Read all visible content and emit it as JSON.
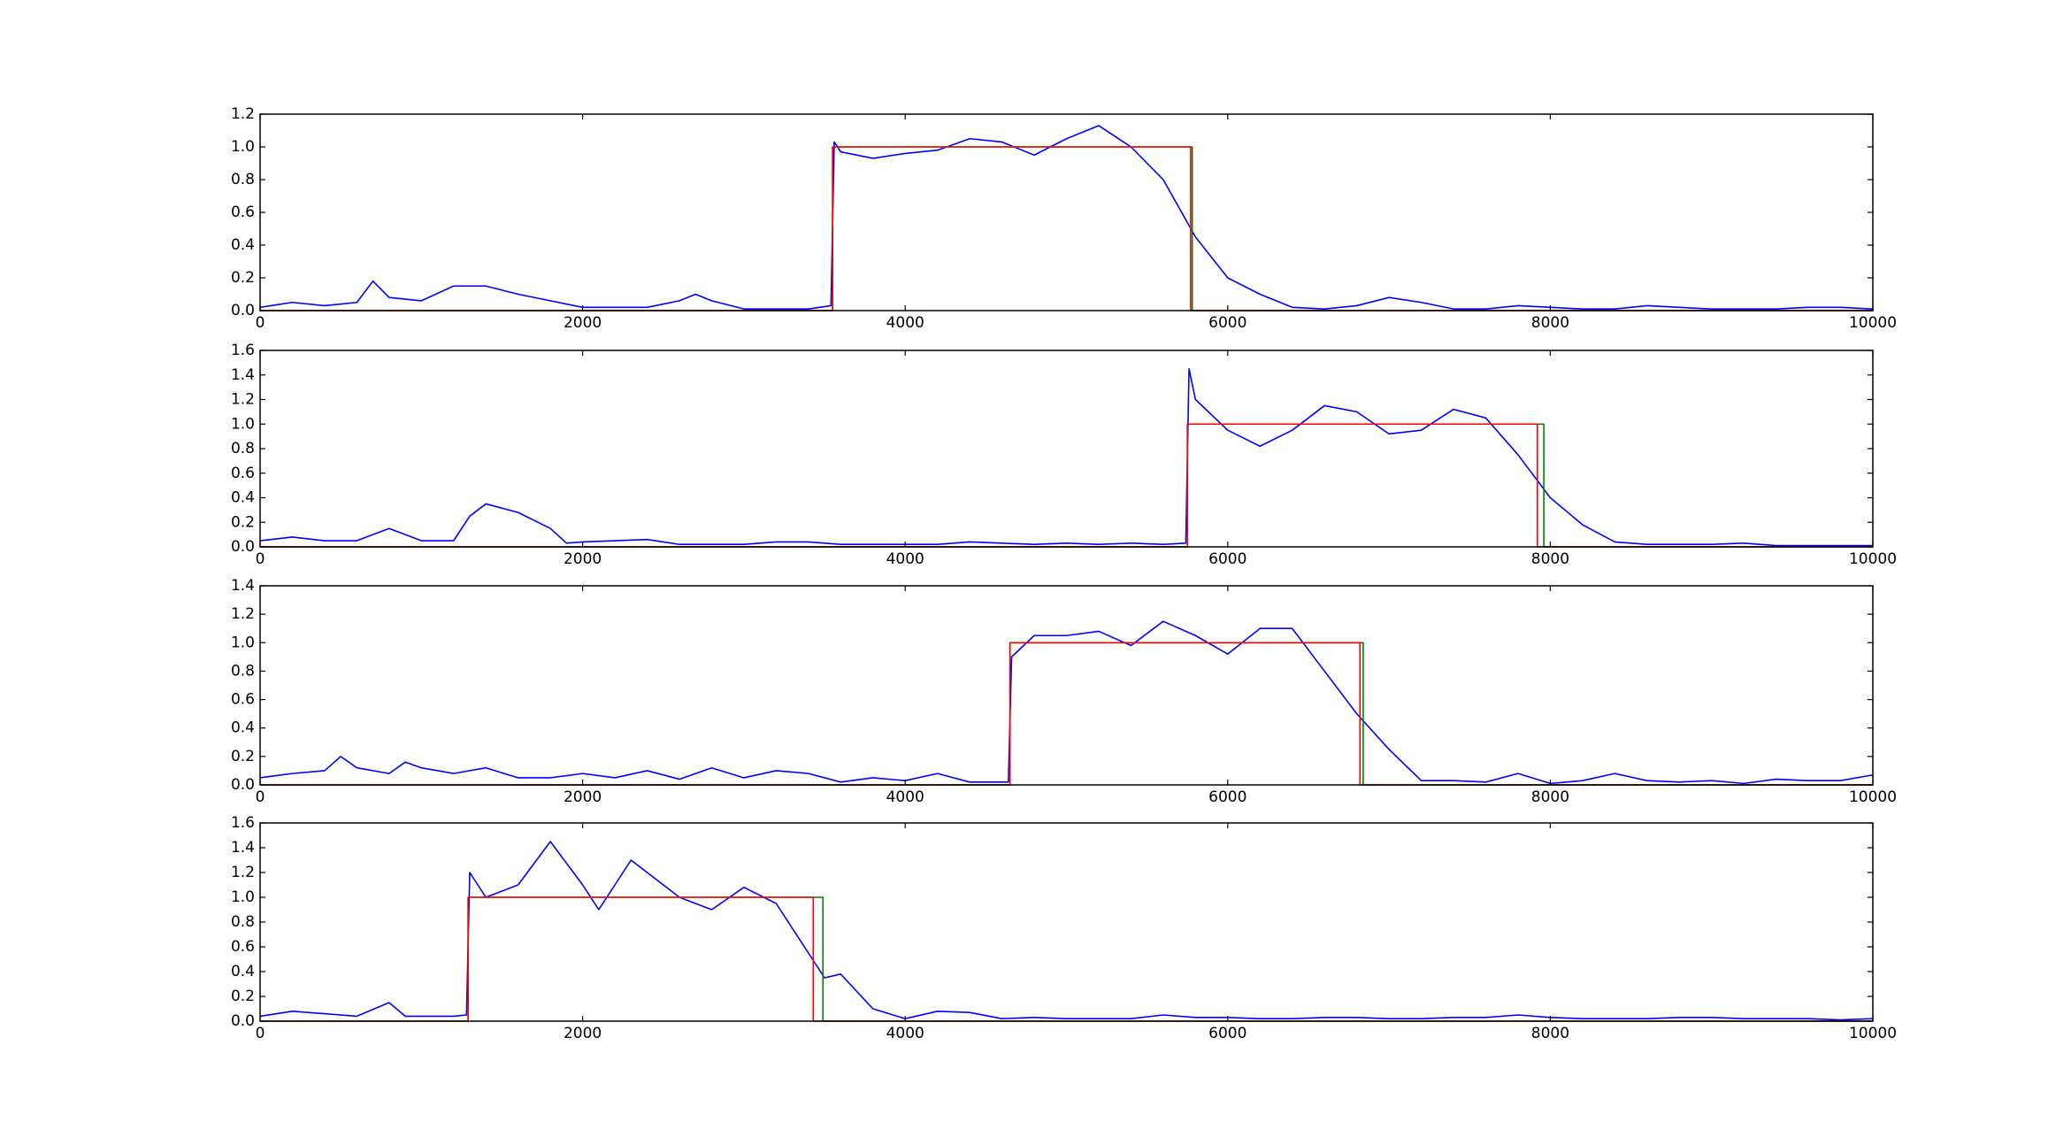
{
  "chart_data": [
    {
      "type": "line",
      "xlim": [
        0,
        10000
      ],
      "xticks": [
        0,
        2000,
        4000,
        6000,
        8000,
        10000
      ],
      "ylim": [
        0,
        1.2
      ],
      "yticks": [
        {
          "value": 0,
          "label": "0.0"
        },
        0.2,
        0.4,
        0.6,
        0.8,
        {
          "value": 1,
          "label": "1.0"
        },
        1.2
      ],
      "series": [
        {
          "color": "#0000ff",
          "x": [
            0,
            200,
            400,
            600,
            700,
            800,
            1000,
            1200,
            1400,
            1600,
            1800,
            2000,
            2200,
            2400,
            2600,
            2700,
            2800,
            3000,
            3200,
            3400,
            3540,
            3560,
            3600,
            3800,
            4000,
            4200,
            4400,
            4600,
            4800,
            5000,
            5200,
            5400,
            5600,
            5800,
            6000,
            6200,
            6400,
            6600,
            6800,
            7000,
            7200,
            7400,
            7600,
            7800,
            8000,
            8200,
            8400,
            8600,
            8800,
            9000,
            9200,
            9400,
            9600,
            9800,
            10000
          ],
          "values": [
            0.02,
            0.05,
            0.03,
            0.05,
            0.18,
            0.08,
            0.06,
            0.15,
            0.15,
            0.1,
            0.06,
            0.02,
            0.02,
            0.02,
            0.06,
            0.1,
            0.06,
            0.01,
            0.01,
            0.01,
            0.03,
            1.03,
            0.97,
            0.93,
            0.96,
            0.98,
            1.05,
            1.03,
            0.95,
            1.05,
            1.13,
            1.0,
            0.8,
            0.45,
            0.2,
            0.1,
            0.02,
            0.01,
            0.03,
            0.08,
            0.05,
            0.01,
            0.01,
            0.03,
            0.02,
            0.01,
            0.01,
            0.03,
            0.02,
            0.01,
            0.01,
            0.01,
            0.02,
            0.02,
            0.01
          ]
        },
        {
          "color": "#008000",
          "x": [
            0,
            3550,
            3550,
            5780,
            5780,
            10000
          ],
          "values": [
            0,
            0,
            1,
            1,
            0,
            0
          ]
        },
        {
          "color": "#ff0000",
          "x": [
            0,
            3550,
            3550,
            5770,
            5770,
            10000
          ],
          "values": [
            0,
            0,
            1,
            1,
            0,
            0
          ]
        }
      ]
    },
    {
      "type": "line",
      "xlim": [
        0,
        10000
      ],
      "xticks": [
        0,
        2000,
        4000,
        6000,
        8000,
        10000
      ],
      "ylim": [
        0,
        1.6
      ],
      "yticks": [
        {
          "value": 0,
          "label": "0.0"
        },
        0.2,
        0.4,
        0.6,
        0.8,
        {
          "value": 1,
          "label": "1.0"
        },
        1.2,
        1.4,
        1.6
      ],
      "series": [
        {
          "color": "#0000ff",
          "x": [
            0,
            200,
            400,
            600,
            800,
            1000,
            1200,
            1300,
            1400,
            1600,
            1800,
            1900,
            2000,
            2200,
            2400,
            2600,
            2800,
            3000,
            3200,
            3400,
            3600,
            3800,
            4000,
            4200,
            4400,
            4600,
            4800,
            5000,
            5200,
            5400,
            5600,
            5740,
            5760,
            5800,
            6000,
            6200,
            6400,
            6600,
            6800,
            7000,
            7200,
            7400,
            7600,
            7800,
            8000,
            8200,
            8400,
            8600,
            8800,
            9000,
            9200,
            9400,
            9600,
            9800,
            10000
          ],
          "values": [
            0.05,
            0.08,
            0.05,
            0.05,
            0.15,
            0.05,
            0.05,
            0.25,
            0.35,
            0.28,
            0.15,
            0.03,
            0.04,
            0.05,
            0.06,
            0.02,
            0.02,
            0.02,
            0.04,
            0.04,
            0.02,
            0.02,
            0.02,
            0.02,
            0.04,
            0.03,
            0.02,
            0.03,
            0.02,
            0.03,
            0.02,
            0.03,
            1.45,
            1.2,
            0.95,
            0.82,
            0.95,
            1.15,
            1.1,
            0.92,
            0.95,
            1.12,
            1.05,
            0.75,
            0.4,
            0.18,
            0.04,
            0.02,
            0.02,
            0.02,
            0.03,
            0.01,
            0.01,
            0.01,
            0.01
          ]
        },
        {
          "color": "#008000",
          "x": [
            0,
            5750,
            5750,
            7960,
            7960,
            10000
          ],
          "values": [
            0,
            0,
            1,
            1,
            0,
            0
          ]
        },
        {
          "color": "#ff0000",
          "x": [
            0,
            5750,
            5750,
            7920,
            7920,
            10000
          ],
          "values": [
            0,
            0,
            1,
            1,
            0,
            0
          ]
        }
      ]
    },
    {
      "type": "line",
      "xlim": [
        0,
        10000
      ],
      "xticks": [
        0,
        2000,
        4000,
        6000,
        8000,
        10000
      ],
      "ylim": [
        0,
        1.4
      ],
      "yticks": [
        {
          "value": 0,
          "label": "0.0"
        },
        0.2,
        0.4,
        0.6,
        0.8,
        {
          "value": 1,
          "label": "1.0"
        },
        1.2,
        1.4
      ],
      "series": [
        {
          "color": "#0000ff",
          "x": [
            0,
            200,
            400,
            500,
            600,
            800,
            900,
            1000,
            1200,
            1400,
            1600,
            1800,
            2000,
            2200,
            2400,
            2600,
            2800,
            3000,
            3200,
            3400,
            3600,
            3800,
            4000,
            4200,
            4400,
            4640,
            4660,
            4800,
            5000,
            5200,
            5400,
            5600,
            5800,
            6000,
            6200,
            6400,
            6600,
            6800,
            7000,
            7200,
            7400,
            7600,
            7800,
            8000,
            8200,
            8400,
            8600,
            8800,
            9000,
            9200,
            9400,
            9600,
            9800,
            10000
          ],
          "values": [
            0.05,
            0.08,
            0.1,
            0.2,
            0.12,
            0.08,
            0.16,
            0.12,
            0.08,
            0.12,
            0.05,
            0.05,
            0.08,
            0.05,
            0.1,
            0.04,
            0.12,
            0.05,
            0.1,
            0.08,
            0.02,
            0.05,
            0.03,
            0.08,
            0.02,
            0.02,
            0.9,
            1.05,
            1.05,
            1.08,
            0.98,
            1.15,
            1.05,
            0.92,
            1.1,
            1.1,
            0.8,
            0.5,
            0.25,
            0.03,
            0.03,
            0.02,
            0.08,
            0.01,
            0.03,
            0.08,
            0.03,
            0.02,
            0.03,
            0.01,
            0.04,
            0.03,
            0.03,
            0.07
          ]
        },
        {
          "color": "#008000",
          "x": [
            0,
            4650,
            4650,
            6840,
            6840,
            10000
          ],
          "values": [
            0,
            0,
            1,
            1,
            0,
            0
          ]
        },
        {
          "color": "#ff0000",
          "x": [
            0,
            4650,
            4650,
            6820,
            6820,
            10000
          ],
          "values": [
            0,
            0,
            1,
            1,
            0,
            0
          ]
        }
      ]
    },
    {
      "type": "line",
      "xlim": [
        0,
        10000
      ],
      "xticks": [
        0,
        2000,
        4000,
        6000,
        8000,
        10000
      ],
      "ylim": [
        0,
        1.6
      ],
      "yticks": [
        {
          "value": 0,
          "label": "0.0"
        },
        0.2,
        0.4,
        0.6,
        0.8,
        {
          "value": 1,
          "label": "1.0"
        },
        1.2,
        1.4,
        1.6
      ],
      "series": [
        {
          "color": "#0000ff",
          "x": [
            0,
            200,
            400,
            600,
            800,
            900,
            1000,
            1200,
            1280,
            1300,
            1400,
            1600,
            1800,
            2000,
            2100,
            2200,
            2300,
            2400,
            2600,
            2800,
            3000,
            3200,
            3400,
            3500,
            3600,
            3800,
            4000,
            4200,
            4400,
            4600,
            4800,
            5000,
            5200,
            5400,
            5600,
            5800,
            6000,
            6200,
            6400,
            6600,
            6800,
            7000,
            7200,
            7400,
            7600,
            7800,
            8000,
            8200,
            8400,
            8600,
            8800,
            9000,
            9200,
            9400,
            9600,
            9800,
            10000
          ],
          "values": [
            0.04,
            0.08,
            0.06,
            0.04,
            0.15,
            0.04,
            0.04,
            0.04,
            0.05,
            1.2,
            1.0,
            1.1,
            1.45,
            1.1,
            0.9,
            1.1,
            1.3,
            1.2,
            1.0,
            0.9,
            1.08,
            0.95,
            0.55,
            0.35,
            0.38,
            0.1,
            0.02,
            0.08,
            0.07,
            0.02,
            0.03,
            0.02,
            0.02,
            0.02,
            0.05,
            0.03,
            0.03,
            0.02,
            0.02,
            0.03,
            0.03,
            0.02,
            0.02,
            0.03,
            0.03,
            0.05,
            0.03,
            0.02,
            0.02,
            0.02,
            0.03,
            0.03,
            0.02,
            0.02,
            0.02,
            0.01,
            0.02
          ]
        },
        {
          "color": "#008000",
          "x": [
            0,
            1290,
            1290,
            3490,
            3490,
            10000
          ],
          "values": [
            0,
            0,
            1,
            1,
            0,
            0
          ]
        },
        {
          "color": "#ff0000",
          "x": [
            0,
            1290,
            1290,
            3430,
            3430,
            10000
          ],
          "values": [
            0,
            0,
            1,
            1,
            0,
            0
          ]
        }
      ]
    }
  ]
}
